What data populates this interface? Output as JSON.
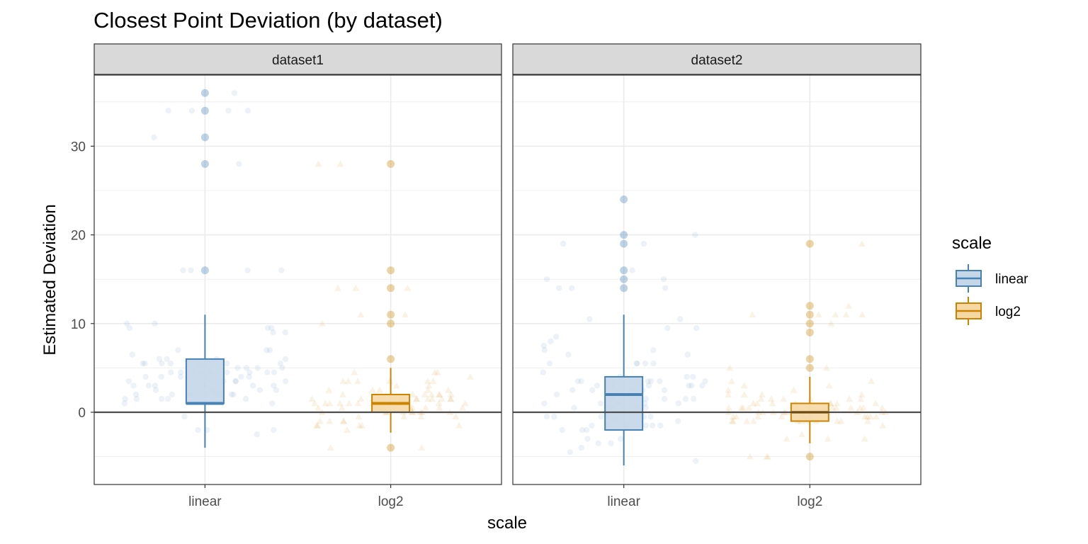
{
  "chart_data": {
    "type": "box",
    "title": "Closest Point Deviation (by dataset)",
    "xlabel": "scale",
    "ylabel": "Estimated Deviation",
    "ylim": [
      -8,
      38
    ],
    "yticks": [
      0,
      10,
      20,
      30
    ],
    "ytick_labels": [
      "0",
      "10",
      "20",
      "30"
    ],
    "categories": [
      "linear",
      "log2"
    ],
    "reference_line": 0,
    "grid": true,
    "legend": {
      "title": "scale",
      "position": "right",
      "entries": [
        {
          "label": "linear",
          "color": "#4682B4",
          "fill": "#C5D6E8"
        },
        {
          "label": "log2",
          "color": "#CC8400",
          "fill": "#F5D8A5"
        }
      ]
    },
    "facets": [
      {
        "label": "dataset1",
        "boxes": [
          {
            "category": "linear",
            "q1": 1,
            "median": 1,
            "q3": 6,
            "whisker_low": -4,
            "whisker_high": 11,
            "outliers": [
              16,
              28,
              31,
              34,
              36
            ]
          },
          {
            "category": "log2",
            "q1": 0,
            "median": 1,
            "q3": 2,
            "whisker_low": -2.3,
            "whisker_high": 5,
            "outliers": [
              -4,
              6,
              10,
              11,
              14,
              16,
              28
            ]
          }
        ]
      },
      {
        "label": "dataset2",
        "boxes": [
          {
            "category": "linear",
            "q1": -2,
            "median": 2,
            "q3": 4,
            "whisker_low": -6,
            "whisker_high": 11,
            "outliers": [
              14,
              15,
              16,
              19,
              20,
              24
            ]
          },
          {
            "category": "log2",
            "q1": -1,
            "median": 0,
            "q3": 1,
            "whisker_low": -3.5,
            "whisker_high": 4,
            "outliers": [
              -5,
              5,
              6,
              9,
              10,
              11,
              12,
              19
            ]
          }
        ]
      }
    ]
  },
  "colors": {
    "linear_line": "#4682B4",
    "linear_fill": "#C5D6E8",
    "log2_line": "#CC8400",
    "log2_fill": "#F5D8A5",
    "strip_fill": "#D9D9D9",
    "grid": "#EBEBEB",
    "reference": "#4D4D4D"
  }
}
